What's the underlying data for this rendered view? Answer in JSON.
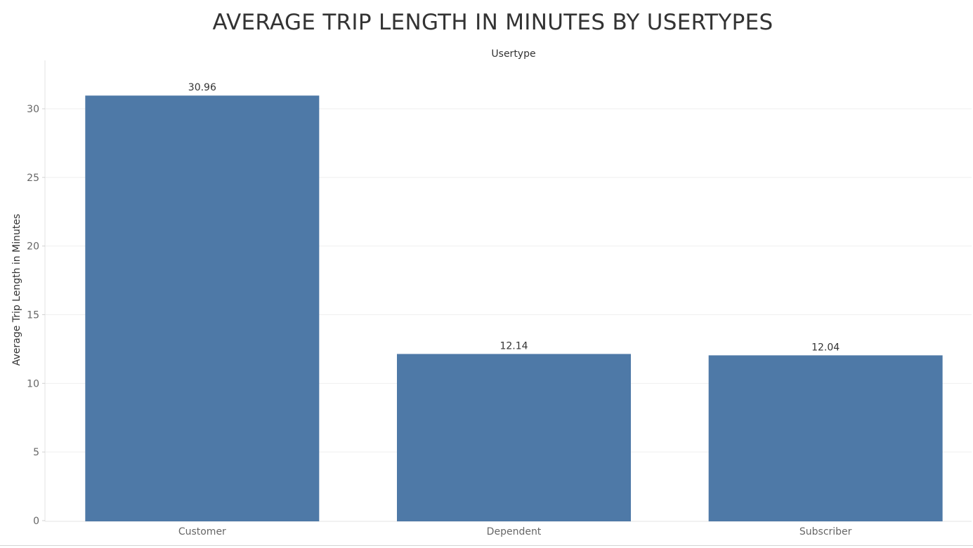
{
  "chart_data": {
    "type": "bar",
    "title": "AVERAGE TRIP LENGTH IN MINUTES BY USERTYPES",
    "header_label": "Usertype",
    "xlabel": "",
    "ylabel": "Average Trip Length in Minutes",
    "categories": [
      "Customer",
      "Dependent",
      "Subscriber"
    ],
    "values": [
      30.96,
      12.14,
      12.04
    ],
    "data_labels": [
      "30.96",
      "12.14",
      "12.04"
    ],
    "ylim": [
      0,
      33
    ],
    "yticks": [
      0,
      5,
      10,
      15,
      20,
      25,
      30
    ],
    "grid": true,
    "legend": "none",
    "bar_color": "#4e79a7",
    "text_color": "#333333",
    "tick_color": "#666666",
    "grid_color": "#efefef"
  }
}
